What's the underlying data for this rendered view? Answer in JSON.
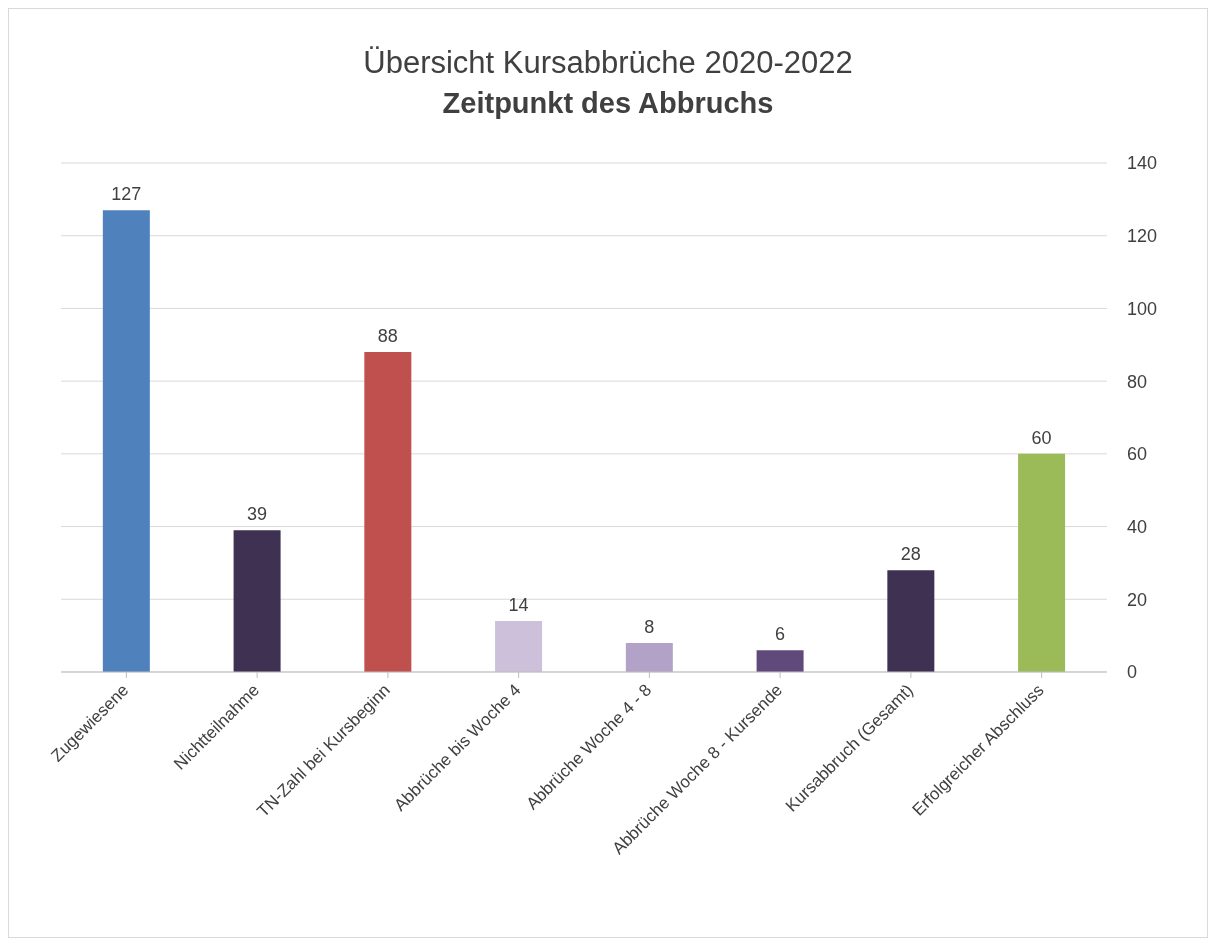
{
  "chart_data": {
    "type": "bar",
    "title": "Übersicht Kursabbrüche 2020-2022",
    "subtitle": "Zeitpunkt des Abbruchs",
    "categories": [
      "Zugewiesene",
      "Nichtteilnahme",
      "TN-Zahl bei Kursbeginn",
      "Abbrüche bis Woche 4",
      "Abbrüche Woche 4 - 8",
      "Abbrüche Woche 8 - Kursende",
      "Kursabbruch (Gesamt)",
      "Erfolgreicher Abschluss"
    ],
    "values": [
      127,
      39,
      88,
      14,
      8,
      6,
      28,
      60
    ],
    "colors": [
      "#4f81bd",
      "#3f3151",
      "#c0504d",
      "#ccc0da",
      "#b3a2c7",
      "#604a7b",
      "#3f3151",
      "#9bbb59"
    ],
    "ylim": [
      0,
      140
    ],
    "yticks": [
      0,
      20,
      40,
      60,
      80,
      100,
      120,
      140
    ],
    "grid": "y",
    "data_labels": true
  }
}
